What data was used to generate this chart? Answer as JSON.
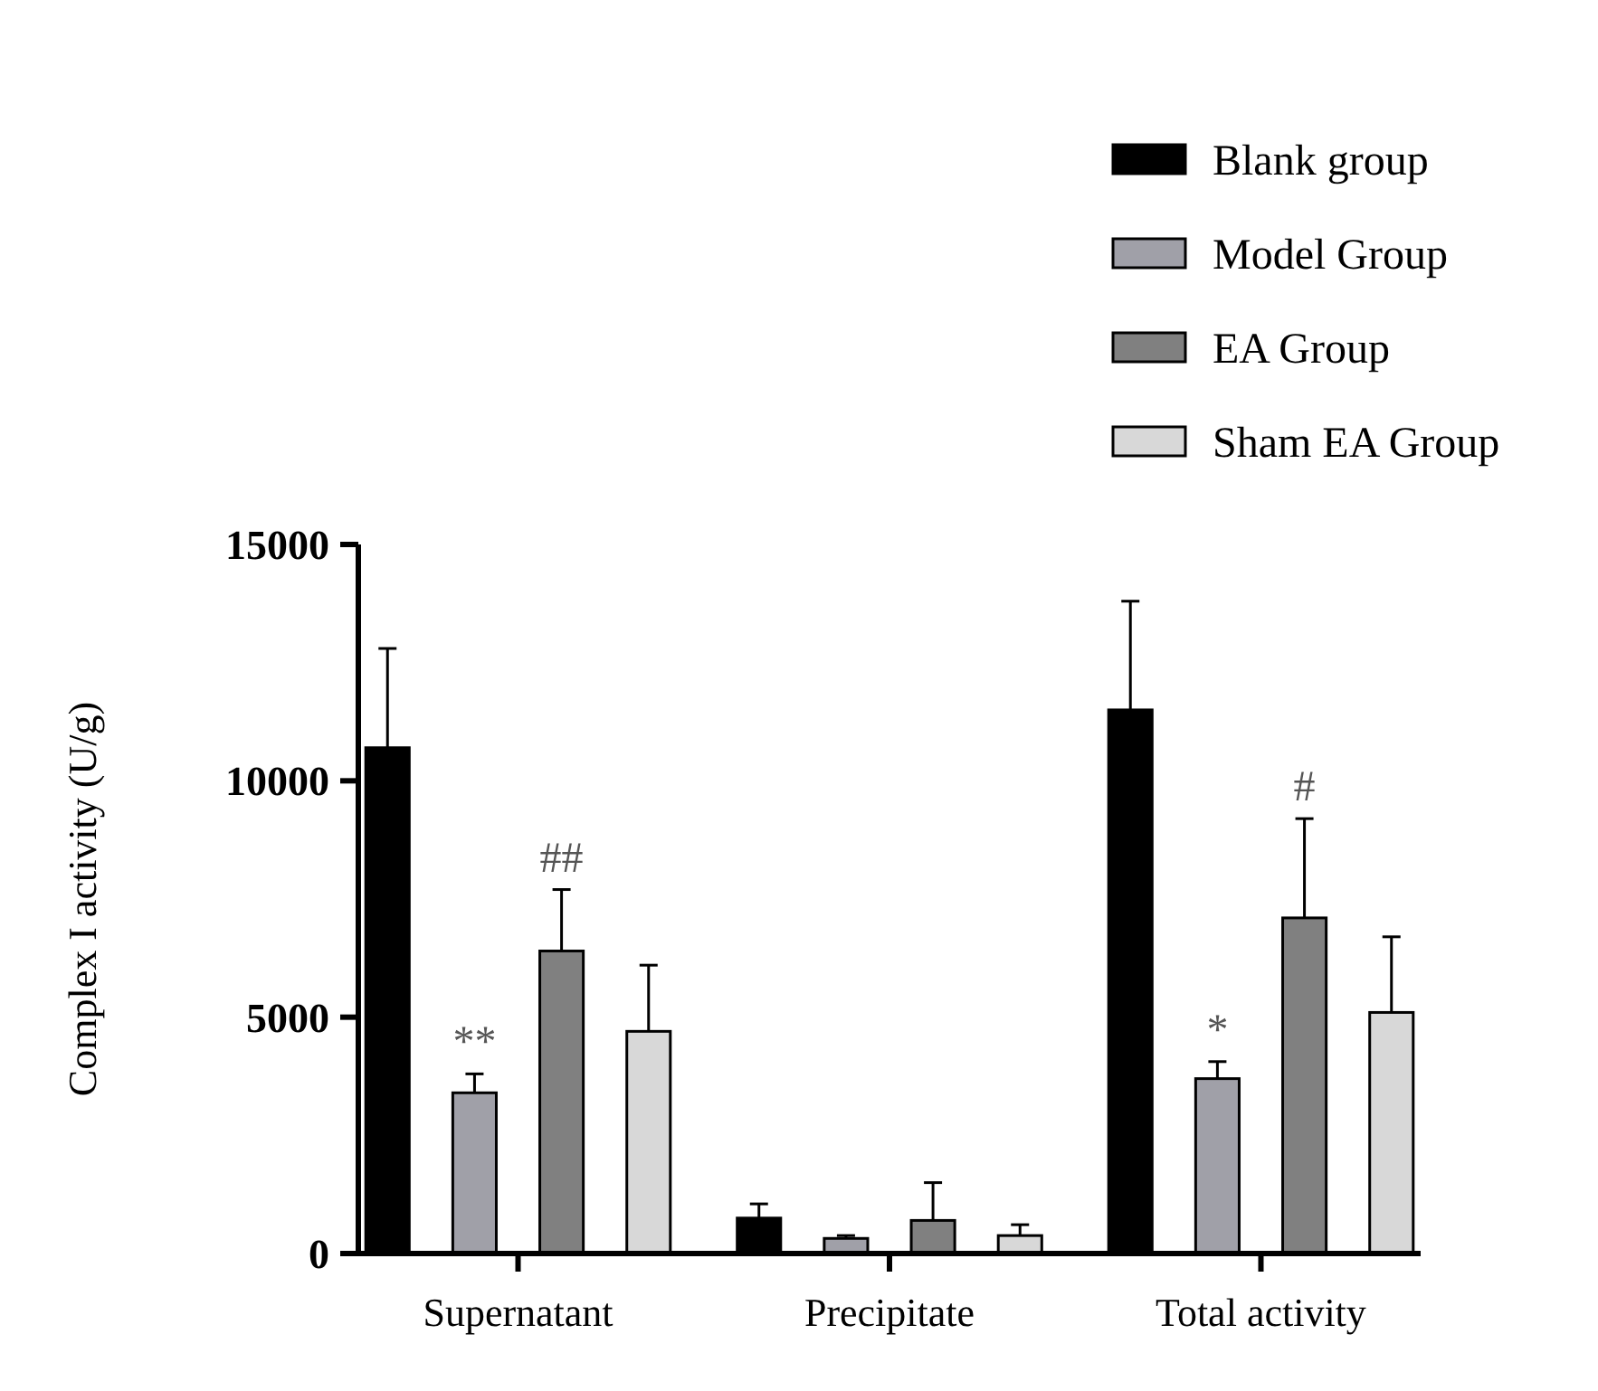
{
  "chart_data": {
    "type": "bar",
    "ylabel": "Complex I activity (U/g)",
    "categories": [
      "Supernatant",
      "Precipitate",
      "Total activity"
    ],
    "series": [
      {
        "name": "Blank group",
        "color": "#000000",
        "values": [
          10700,
          750,
          11500
        ],
        "errors": [
          [
            10700,
            12800
          ],
          [
            750,
            1050
          ],
          [
            11500,
            13800
          ]
        ]
      },
      {
        "name": "Model Group",
        "color": "#a0a0a8",
        "values": [
          3400,
          320,
          3700
        ],
        "errors": [
          [
            3400,
            3800
          ],
          [
            320,
            380
          ],
          [
            3700,
            4060
          ]
        ]
      },
      {
        "name": "EA Group",
        "color": "#808080",
        "values": [
          6400,
          700,
          7100
        ],
        "errors": [
          [
            6400,
            7700
          ],
          [
            700,
            1500
          ],
          [
            7100,
            9200
          ]
        ]
      },
      {
        "name": "Sham EA Group",
        "color": "#d8d8d8",
        "values": [
          4700,
          380,
          5100
        ],
        "errors": [
          [
            4700,
            6100
          ],
          [
            380,
            610
          ],
          [
            5100,
            6700
          ]
        ]
      }
    ],
    "ylim": [
      0,
      15000
    ],
    "yticks": [
      0,
      5000,
      10000,
      15000
    ],
    "grid": false,
    "legend": "top right",
    "annotations": [
      "**",
      "##",
      "*",
      "#"
    ]
  }
}
